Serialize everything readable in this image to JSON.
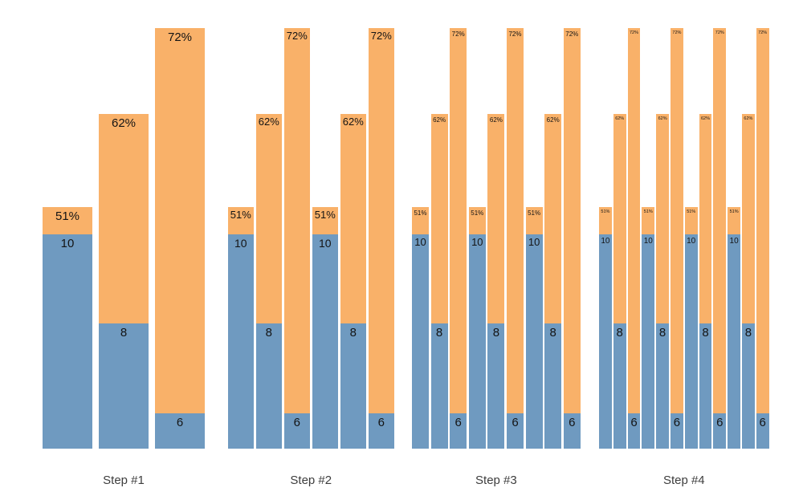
{
  "chart_data": {
    "type": "bar",
    "subtype": "stacked-bars-small-multiples",
    "title": "",
    "xlabel": "",
    "ylabel": "",
    "axes_visible": false,
    "grid": false,
    "legend": "none",
    "background": "#ffffff",
    "groups": [
      {
        "label": "Step #1",
        "repeats": 1
      },
      {
        "label": "Step #2",
        "repeats": 2
      },
      {
        "label": "Step #3",
        "repeats": 3
      },
      {
        "label": "Step #4",
        "repeats": 4
      }
    ],
    "bar_pattern": [
      {
        "value": 10,
        "value_label": "10",
        "pct": 51,
        "pct_label": "51%",
        "total_frac": 0.5744,
        "blue_frac": 0.5095
      },
      {
        "value": 8,
        "value_label": "8",
        "pct": 62,
        "pct_label": "62%",
        "total_frac": 0.7958,
        "blue_frac": 0.2977
      },
      {
        "value": 6,
        "value_label": "6",
        "pct": 72,
        "pct_label": "72%",
        "total_frac": 1.0,
        "blue_frac": 0.084
      }
    ],
    "colors": {
      "value_segment": "#6f9ac0",
      "remainder_segment": "#f9b169",
      "bar_label_text": "#141414",
      "group_label_text": "#3d3d3d"
    }
  }
}
